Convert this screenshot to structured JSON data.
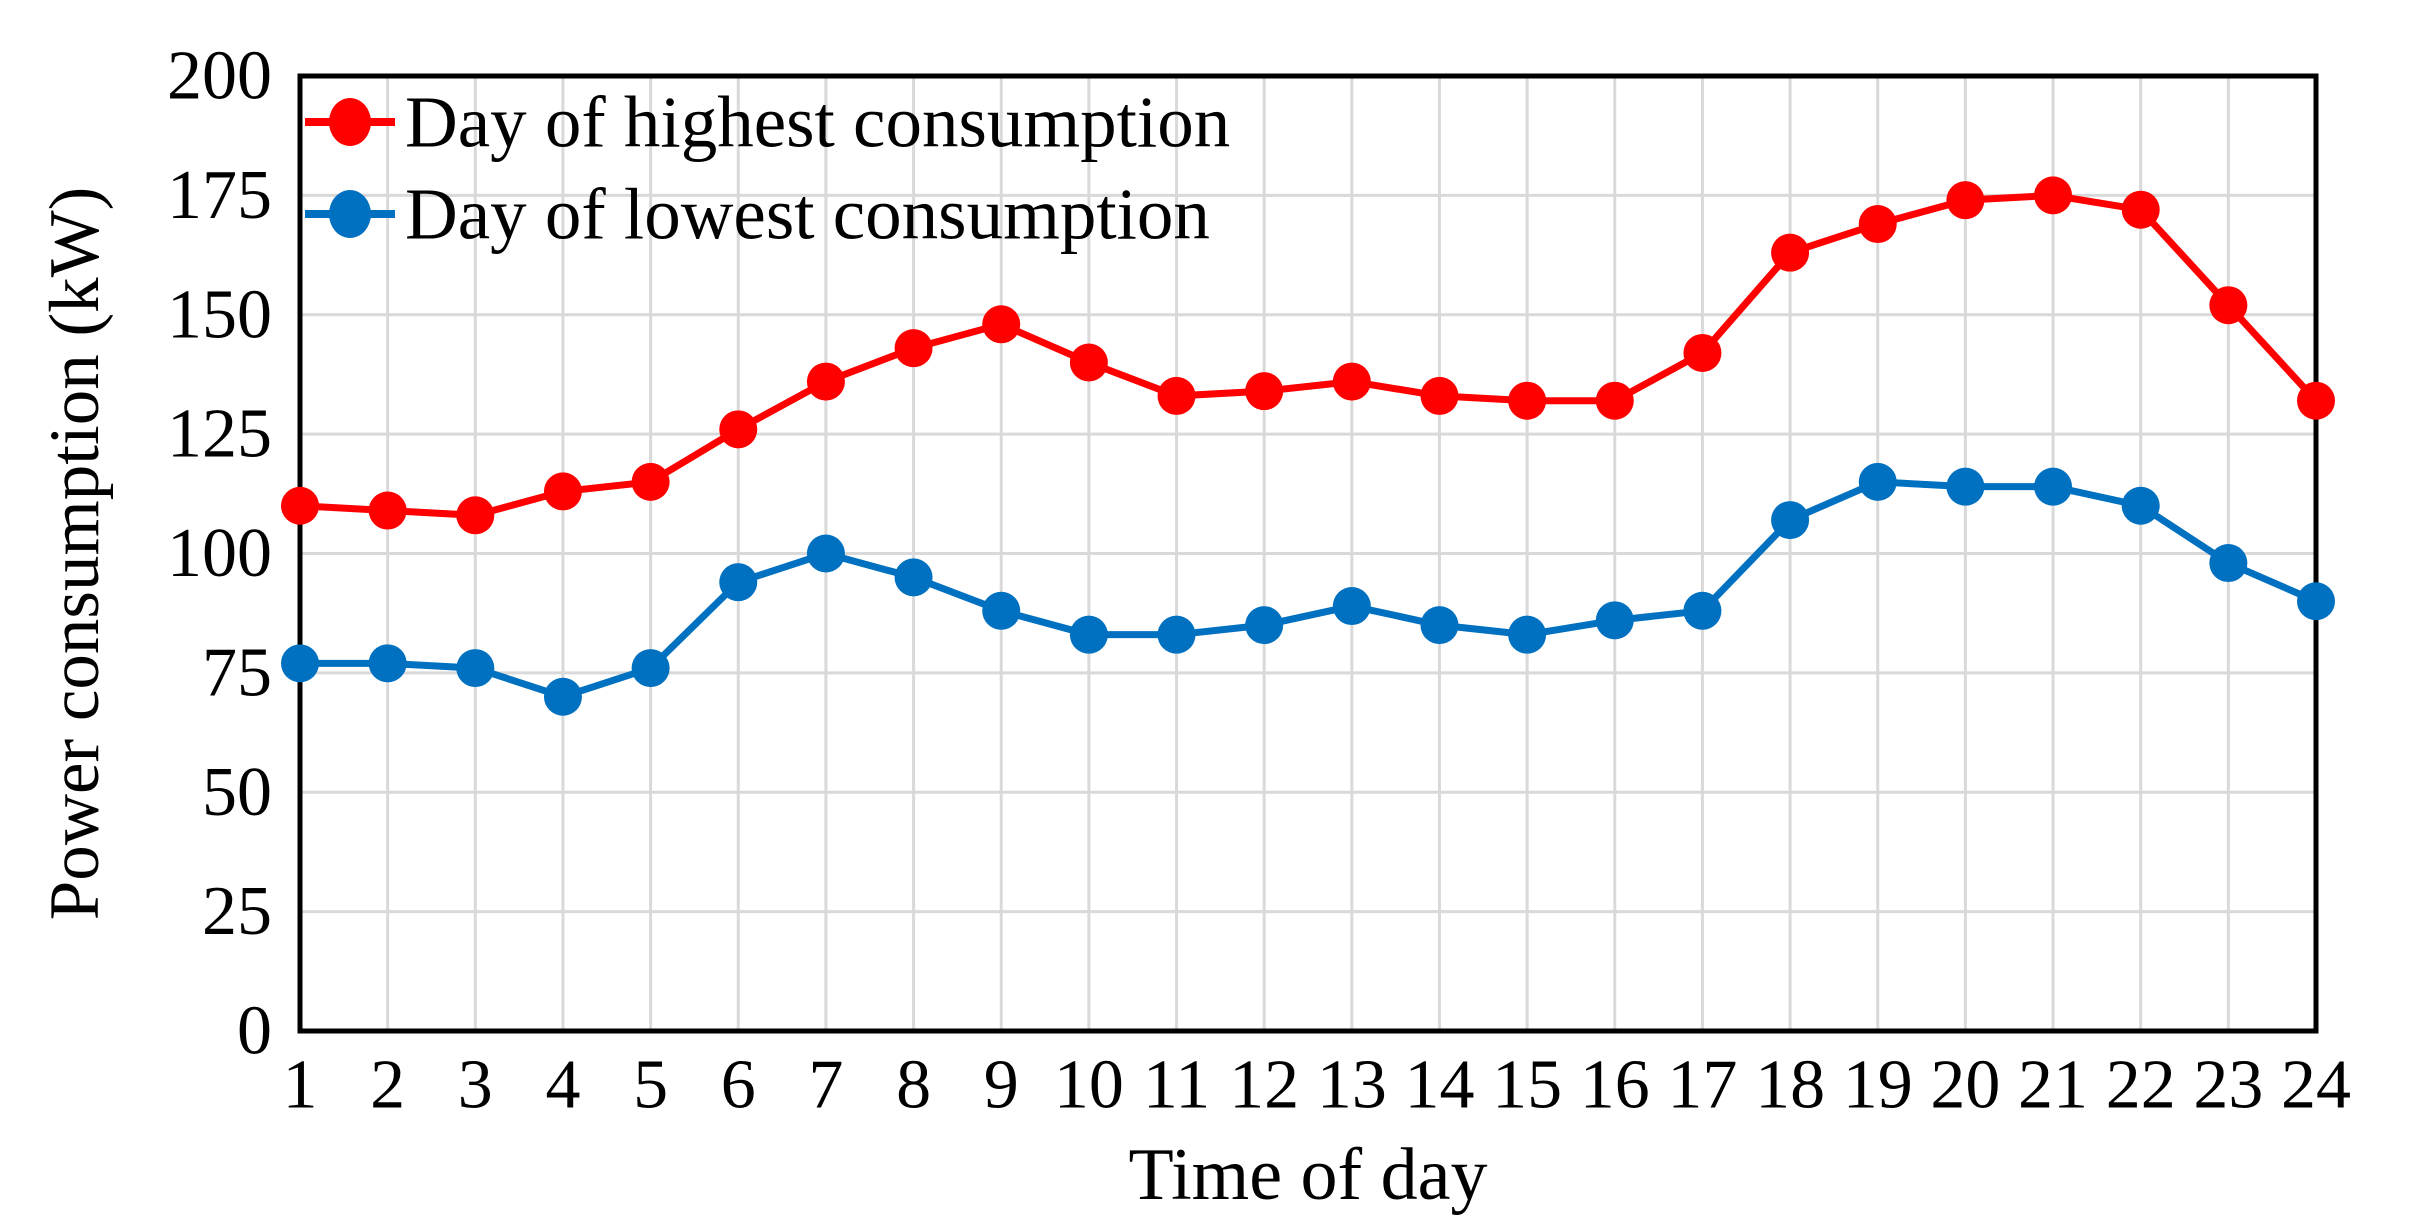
{
  "chart_data": {
    "type": "line",
    "title": "",
    "xlabel": "Time of day",
    "ylabel": "Power consumption (kW)",
    "categories": [
      1,
      2,
      3,
      4,
      5,
      6,
      7,
      8,
      9,
      10,
      11,
      12,
      13,
      14,
      15,
      16,
      17,
      18,
      19,
      20,
      21,
      22,
      23,
      24
    ],
    "yticks": [
      0,
      25,
      50,
      75,
      100,
      125,
      150,
      175,
      200
    ],
    "ylim": [
      0,
      200
    ],
    "grid": true,
    "legend_position": "top-left-inside",
    "series": [
      {
        "name": "Day of highest consumption",
        "color": "#FF0000",
        "values": [
          110,
          109,
          108,
          113,
          115,
          126,
          136,
          143,
          148,
          140,
          133,
          134,
          136,
          133,
          132,
          132,
          142,
          163,
          169,
          174,
          175,
          172,
          152,
          132
        ]
      },
      {
        "name": "Day of lowest consumption",
        "color": "#0070C0",
        "values": [
          77,
          77,
          76,
          70,
          76,
          94,
          100,
          95,
          88,
          83,
          83,
          85,
          89,
          85,
          83,
          86,
          88,
          107,
          115,
          114,
          114,
          110,
          98,
          90
        ]
      }
    ]
  },
  "colors": {
    "gridline": "#D9D9D9",
    "axis": "#000000",
    "background": "#FFFFFF"
  }
}
